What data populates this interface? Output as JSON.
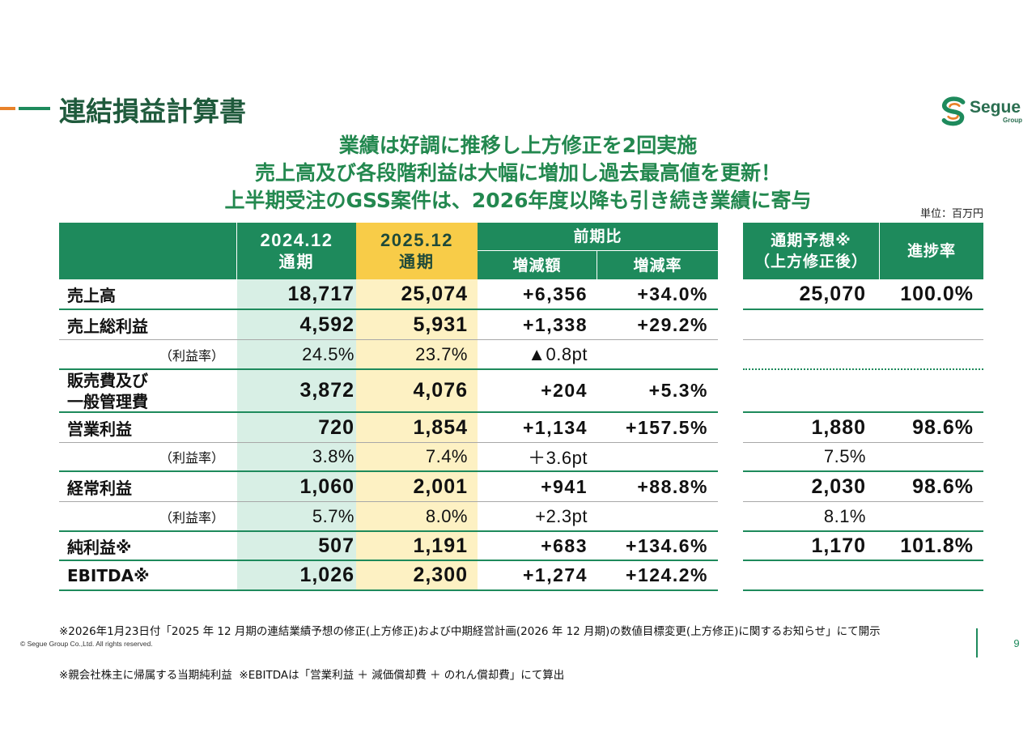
{
  "colors": {
    "accent_green": "#1e8a5c",
    "title_green": "#1f5a3c",
    "headline_green": "#23884f",
    "header_yellow": "#f8cc48",
    "prev_column_bg": "#d8efe5",
    "cur_column_bg": "#fdf1c3",
    "orange": "#e8822a"
  },
  "slide": {
    "title": "連結損益計算書",
    "headlines": [
      "業績は好調に推移し上方修正を2回実施",
      "売上高及び各段階利益は大幅に増加し過去最高値を更新！",
      "上半期受注のGSS案件は、2026年度以降も引き続き業績に寄与"
    ],
    "unit": "単位：百万円",
    "page_number": "9",
    "copyright": "© Segue Group Co.,Ltd. All rights reserved."
  },
  "logo": {
    "icon": "segue-emblem-icon",
    "name": "Segue",
    "sub": "Group"
  },
  "table": {
    "header": {
      "prev_period": "2024.12",
      "prev_label": "通期",
      "cur_period": "2025.12",
      "cur_label": "通期",
      "comparison": "前期比",
      "change_amount": "増減額",
      "change_rate": "増減率",
      "forecast_line1": "通期予想※",
      "forecast_line2": "（上方修正後）",
      "progress": "進捗率"
    },
    "rows": [
      {
        "label": "売上高",
        "prev": "18,717",
        "cur": "25,074",
        "diff": "+6,356",
        "rate": "+34.0%",
        "forecast": "25,070",
        "progress": "100.0%"
      },
      {
        "label": "売上総利益",
        "prev": "4,592",
        "cur": "5,931",
        "diff": "+1,338",
        "rate": "+29.2%"
      },
      {
        "label": "（利益率）",
        "prev": "24.5%",
        "cur": "23.7%",
        "diff": "▲0.8pt"
      },
      {
        "label_lines": [
          "販売費及び",
          "一般管理費"
        ],
        "prev": "3,872",
        "cur": "4,076",
        "diff": "+204",
        "rate": "+5.3%"
      },
      {
        "label": "営業利益",
        "prev": "720",
        "cur": "1,854",
        "diff": "+1,134",
        "rate": "+157.5%",
        "forecast": "1,880",
        "progress": "98.6%"
      },
      {
        "label": "（利益率）",
        "prev": "3.8%",
        "cur": "7.4%",
        "diff": "＋3.6pt",
        "forecast": "7.5%"
      },
      {
        "label": "経常利益",
        "prev": "1,060",
        "cur": "2,001",
        "diff": "+941",
        "rate": "+88.8%",
        "forecast": "2,030",
        "progress": "98.6%"
      },
      {
        "label": "（利益率）",
        "prev": "5.7%",
        "cur": "8.0%",
        "diff": "+2.3pt",
        "forecast": "8.1%"
      },
      {
        "label": "純利益※",
        "prev": "507",
        "cur": "1,191",
        "diff": "+683",
        "rate": "+134.6%",
        "forecast": "1,170",
        "progress": "101.8%"
      },
      {
        "label": "EBITDA※",
        "prev": "1,026",
        "cur": "2,300",
        "diff": "+1,274",
        "rate": "+124.2%"
      }
    ]
  },
  "footnotes": [
    "※2026年1月23日付「2025 年 12 月期の連結業績予想の修正(上方修正)および中期経営計画(2026 年 12 月期)の数値目標変更(上方修正)に関するお知らせ」にて開示",
    "※親会社株主に帰属する当期純利益  ※EBITDAは「営業利益 ＋ 減価償却費 ＋ のれん償却費」にて算出"
  ]
}
